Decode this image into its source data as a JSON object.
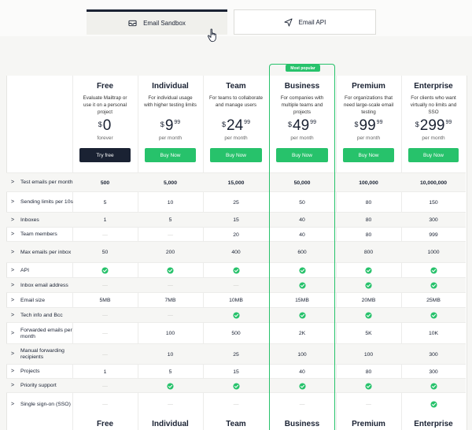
{
  "tabs": [
    {
      "label": "Email Sandbox",
      "icon": "inbox-icon",
      "active": true
    },
    {
      "label": "Email API",
      "icon": "send-icon",
      "active": false
    }
  ],
  "badge": "Most popular",
  "plans": [
    {
      "name": "Free",
      "desc": "Evaluate Mailtrap or use it on a personal project",
      "currency": "$",
      "amount": "0",
      "cents": "",
      "period": "forever",
      "button": "Try free"
    },
    {
      "name": "Individual",
      "desc": "For individual usage with higher testing limits",
      "currency": "$",
      "amount": "9",
      "cents": "99",
      "period": "per month",
      "button": "Buy Now"
    },
    {
      "name": "Team",
      "desc": "For teams to collaborate and manage users",
      "currency": "$",
      "amount": "24",
      "cents": "99",
      "period": "per month",
      "button": "Buy Now"
    },
    {
      "name": "Business",
      "desc": "For companies with multiple teams and projects",
      "currency": "$",
      "amount": "49",
      "cents": "99",
      "period": "per month",
      "button": "Buy Now"
    },
    {
      "name": "Premium",
      "desc": "For organizations that need large-scale email testing",
      "currency": "$",
      "amount": "99",
      "cents": "99",
      "period": "per month",
      "button": "Buy Now"
    },
    {
      "name": "Enterprise",
      "desc": "For clients who want virtually no limits and SSO",
      "currency": "$",
      "amount": "299",
      "cents": "99",
      "period": "per month",
      "button": "Buy Now"
    }
  ],
  "features": [
    {
      "label": "Test emails per month",
      "values": [
        "500",
        "5,000",
        "15,000",
        "50,000",
        "100,000",
        "10,000,000"
      ]
    },
    {
      "label": "Sending limits per 10s",
      "values": [
        "5",
        "10",
        "25",
        "50",
        "80",
        "150"
      ]
    },
    {
      "label": "Inboxes",
      "values": [
        "1",
        "5",
        "15",
        "40",
        "80",
        "300"
      ]
    },
    {
      "label": "Team members",
      "values": [
        "—",
        "—",
        "20",
        "40",
        "80",
        "999"
      ]
    },
    {
      "label": "Max emails per inbox",
      "values": [
        "50",
        "200",
        "400",
        "600",
        "800",
        "1000"
      ]
    },
    {
      "label": "API",
      "values": [
        "check",
        "check",
        "check",
        "check",
        "check",
        "check"
      ]
    },
    {
      "label": "Inbox email address",
      "values": [
        "—",
        "—",
        "—",
        "check",
        "check",
        "check"
      ]
    },
    {
      "label": "Email size",
      "values": [
        "5MB",
        "7MB",
        "10MB",
        "15MB",
        "20MB",
        "25MB"
      ]
    },
    {
      "label": "Tech info and Bcc",
      "values": [
        "—",
        "—",
        "check",
        "check",
        "check",
        "check"
      ]
    },
    {
      "label": "Forwarded emails per month",
      "values": [
        "—",
        "100",
        "500",
        "2K",
        "5K",
        "10K"
      ]
    },
    {
      "label": "Manual forwarding recipients",
      "values": [
        "—",
        "10",
        "25",
        "100",
        "100",
        "300"
      ]
    },
    {
      "label": "Projects",
      "values": [
        "1",
        "5",
        "15",
        "40",
        "80",
        "300"
      ]
    },
    {
      "label": "Priority support",
      "values": [
        "—",
        "check",
        "check",
        "check",
        "check",
        "check"
      ]
    },
    {
      "label": "Single sign-on (SSO)",
      "values": [
        "—",
        "—",
        "—",
        "—",
        "—",
        "check"
      ]
    }
  ],
  "colors": {
    "accent": "#27c26b",
    "dark": "#1a2233"
  }
}
